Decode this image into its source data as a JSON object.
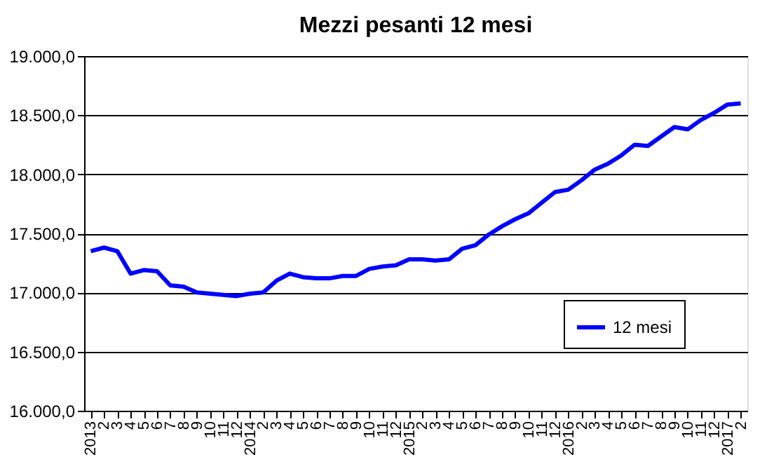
{
  "chart_data": {
    "type": "line",
    "title": "Mezzi pesanti 12 mesi",
    "categories": [
      "2013",
      "2",
      "3",
      "4",
      "5",
      "6",
      "7",
      "8",
      "9",
      "10",
      "11",
      "12",
      "2014",
      "2",
      "3",
      "4",
      "5",
      "6",
      "7",
      "8",
      "9",
      "10",
      "11",
      "12",
      "2015",
      "2",
      "3",
      "4",
      "5",
      "6",
      "7",
      "8",
      "9",
      "10",
      "11",
      "12",
      "2016",
      "2",
      "3",
      "4",
      "5",
      "6",
      "7",
      "8",
      "9",
      "10",
      "11",
      "12",
      "2017",
      "2"
    ],
    "series": [
      {
        "name": "12 mesi",
        "color": "#0000ff",
        "values": [
          17350,
          17380,
          17350,
          17160,
          17190,
          17180,
          17060,
          17050,
          17000,
          16990,
          16980,
          16970,
          16990,
          17000,
          17100,
          17160,
          17130,
          17120,
          17120,
          17140,
          17140,
          17200,
          17220,
          17230,
          17280,
          17280,
          17270,
          17280,
          17370,
          17400,
          17490,
          17560,
          17620,
          17670,
          17760,
          17850,
          17870,
          17950,
          18040,
          18090,
          18160,
          18250,
          18240,
          18320,
          18400,
          18380,
          18460,
          18520,
          18590,
          18600
        ]
      }
    ],
    "ylim": [
      16000,
      19000
    ],
    "yticks": [
      {
        "value": 16000,
        "label": "16.000,0"
      },
      {
        "value": 16500,
        "label": "16.500,0"
      },
      {
        "value": 17000,
        "label": "17.000,0"
      },
      {
        "value": 17500,
        "label": "17.500,0"
      },
      {
        "value": 18000,
        "label": "18.000,0"
      },
      {
        "value": 18500,
        "label": "18.500,0"
      },
      {
        "value": 19000,
        "label": "19.000,0"
      }
    ],
    "grid": "y",
    "legend": "bottom right",
    "marker": "none",
    "line_style": "solid"
  }
}
